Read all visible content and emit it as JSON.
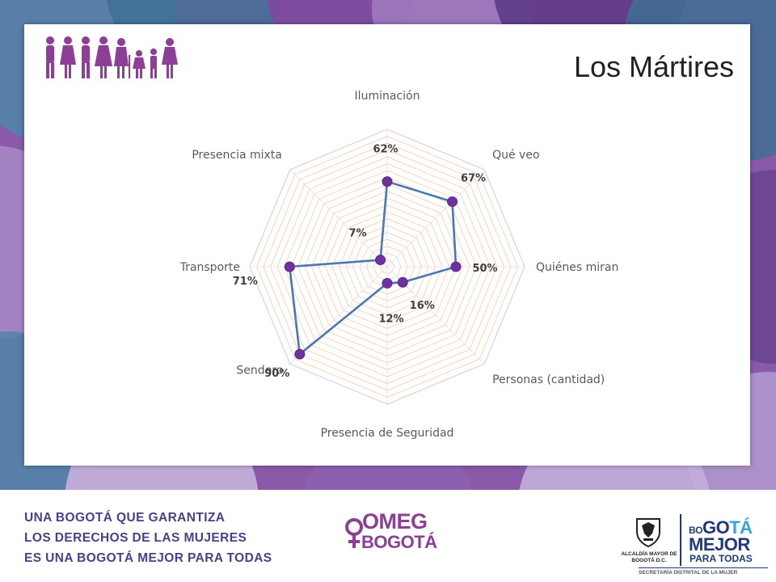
{
  "slide": {
    "title": "Los Mártires"
  },
  "colors": {
    "series_line": "#4a78b5",
    "marker": "#7030a0",
    "grid": "#f6c6a0",
    "brand_purple": "#8c3f95",
    "brand_navy": "#4a3f8c",
    "brand_blue": "#1f3a7a",
    "brand_cyan": "#2fa6de"
  },
  "chart_data": {
    "type": "radar",
    "categories": [
      "Iluminación",
      "Qué veo",
      "Quiénes miran",
      "Personas (cantidad)",
      "Presencia de Seguridad",
      "Sendero",
      "Transporte",
      "Presencia mixta"
    ],
    "values": [
      62,
      67,
      50,
      16,
      12,
      90,
      71,
      7
    ],
    "value_labels": [
      "62%",
      "67%",
      "50%",
      "16%",
      "12%",
      "90%",
      "71%",
      "7%"
    ],
    "rmax": 100,
    "grid": true,
    "legend": "none"
  },
  "footer": {
    "slogan": [
      "UNA BOGOTÁ QUE GARANTIZA",
      "LOS DERECHOS DE LAS MUJERES",
      "ES UNA BOGOTÁ MEJOR PARA TODAS"
    ],
    "omeg_top": "OMEG",
    "omeg_bottom": "BOGOTÁ",
    "alcaldia_text": "ALCALDÍA MAYOR DE BOGOTÁ D.C.",
    "bogota_mejor": {
      "bo": "BO",
      "go": "GO",
      "ta": "TÁ",
      "mejor": "MEJOR",
      "para_todas": "PARA TODAS"
    },
    "secretaria": "SECRETARÍA DISTRITAL DE LA MUJER"
  }
}
